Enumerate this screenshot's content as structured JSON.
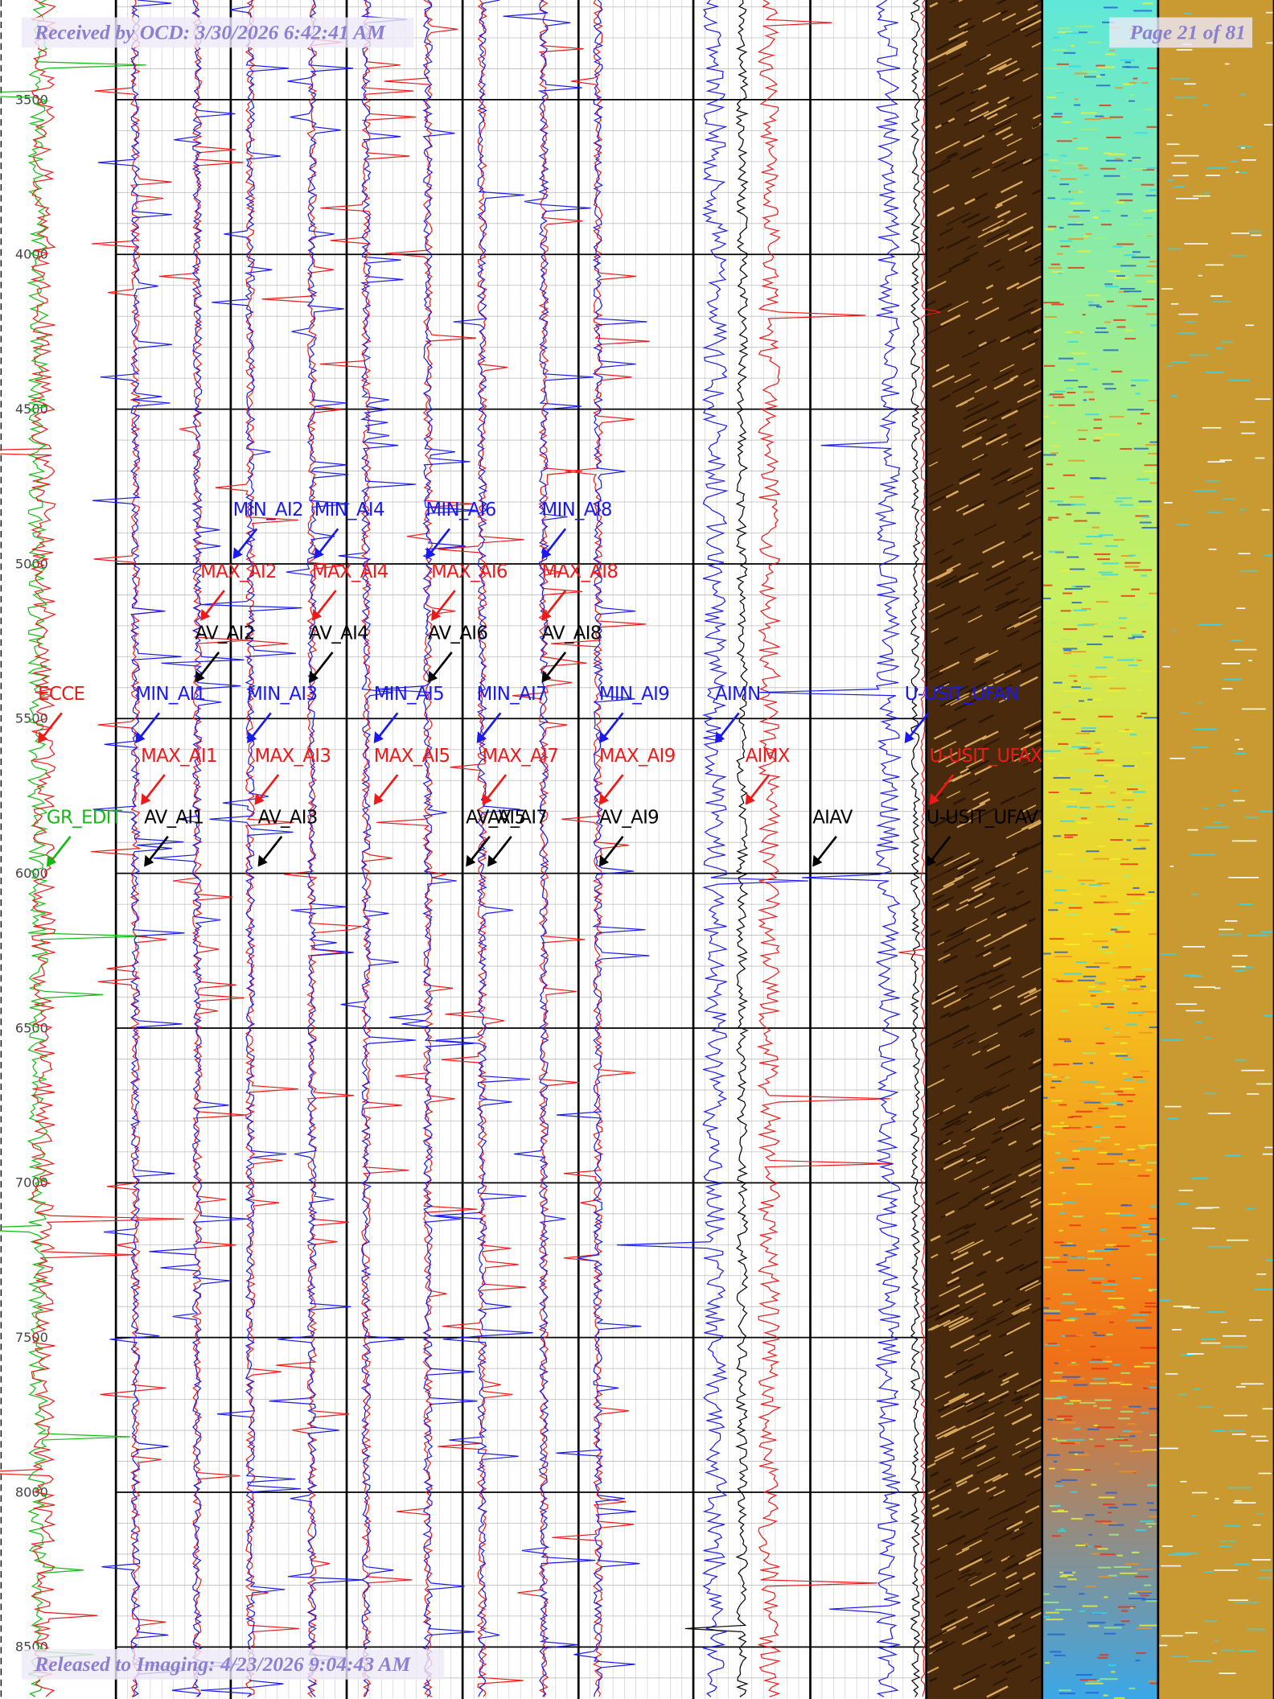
{
  "header": {
    "received": "Received by OCD: 3/30/2026 6:42:41 AM",
    "page": "Page 21 of 81"
  },
  "footer": {
    "released": "Released to Imaging: 4/23/2026 9:04:43 AM"
  },
  "depth_labels": [
    3500,
    4000,
    4500,
    5000,
    5500,
    6000,
    6500,
    7000,
    7500,
    8000,
    8500
  ],
  "curve_labels": [
    {
      "text": "MIN_AI2",
      "color": "#1a1aee"
    },
    {
      "text": "MIN_AI4",
      "color": "#1a1aee"
    },
    {
      "text": "MIN_AI6",
      "color": "#1a1aee"
    },
    {
      "text": "MIN_AI8",
      "color": "#1a1aee"
    },
    {
      "text": "MAX_AI2",
      "color": "#ee1a1a"
    },
    {
      "text": "MAX_AI4",
      "color": "#ee1a1a"
    },
    {
      "text": "MAX_AI6",
      "color": "#ee1a1a"
    },
    {
      "text": "MAX_AI8",
      "color": "#ee1a1a"
    },
    {
      "text": "AV_AI2",
      "color": "#000000"
    },
    {
      "text": "AV_AI4",
      "color": "#000000"
    },
    {
      "text": "AV_AI6",
      "color": "#000000"
    },
    {
      "text": "AV_AI8",
      "color": "#000000"
    },
    {
      "text": "ECCE",
      "color": "#ee1a1a"
    },
    {
      "text": "MIN_AI1",
      "color": "#1a1aee"
    },
    {
      "text": "MIN_AI3",
      "color": "#1a1aee"
    },
    {
      "text": "MIN_AI5",
      "color": "#1a1aee"
    },
    {
      "text": "MIN_AI7",
      "color": "#1a1aee"
    },
    {
      "text": "MIN_AI9",
      "color": "#1a1aee"
    },
    {
      "text": "AIMN",
      "color": "#1a1aee"
    },
    {
      "text": "U-USIT_UFAN",
      "color": "#1a1aee"
    },
    {
      "text": "MAX_AI1",
      "color": "#ee1a1a"
    },
    {
      "text": "MAX_AI3",
      "color": "#ee1a1a"
    },
    {
      "text": "MAX_AI5",
      "color": "#ee1a1a"
    },
    {
      "text": "MAX_AI7",
      "color": "#ee1a1a"
    },
    {
      "text": "MAX_AI9",
      "color": "#ee1a1a"
    },
    {
      "text": "AIMX",
      "color": "#ee1a1a"
    },
    {
      "text": "U-USIT_UFAX",
      "color": "#ee1a1a"
    },
    {
      "text": "GR_EDIT",
      "color": "#11bb11"
    },
    {
      "text": "AV_AI1",
      "color": "#000000"
    },
    {
      "text": "AV_AI3",
      "color": "#000000"
    },
    {
      "text": "AV_AI5",
      "color": "#000000"
    },
    {
      "text": "AV_AI7",
      "color": "#000000"
    },
    {
      "text": "AV_AI9",
      "color": "#000000"
    },
    {
      "text": "AIAV",
      "color": "#000000"
    },
    {
      "text": "U-USIT_UFAV",
      "color": "#000000"
    }
  ]
}
